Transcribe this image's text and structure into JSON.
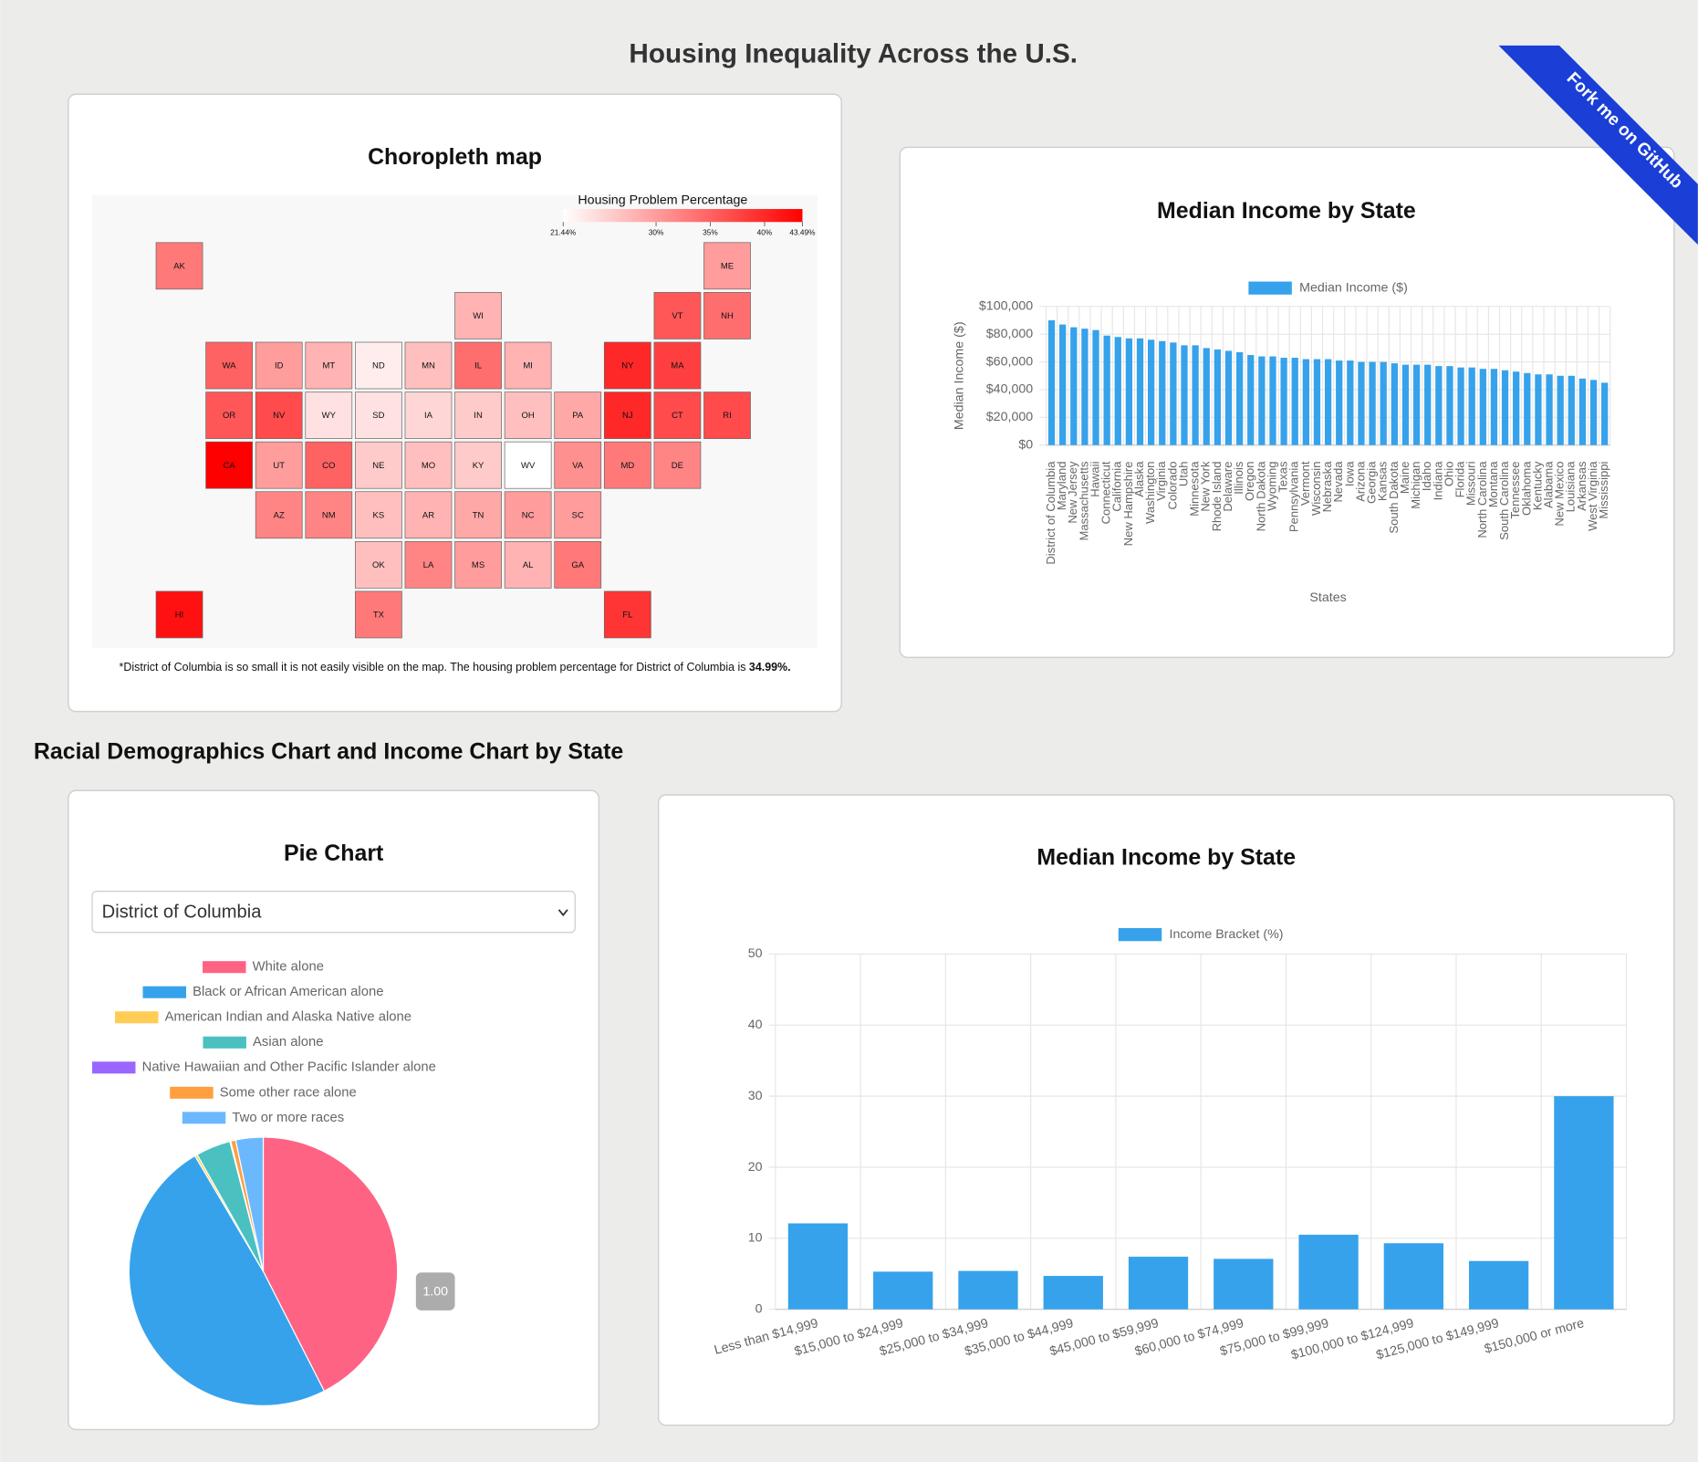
{
  "title": "Housing Inequality Across the U.S.",
  "ribbon": "Fork me on GitHub",
  "section_title": "Racial Demographics Chart and Income Chart by State",
  "chart_data": [
    {
      "type": "choropleth",
      "title": "Choropleth map",
      "legend_title": "Housing Problem Percentage",
      "legend_ticks": [
        {
          "value": 21.44,
          "label": "21.44%"
        },
        {
          "value": 30,
          "label": "30%"
        },
        {
          "value": 35,
          "label": "35%"
        },
        {
          "value": 40,
          "label": "40%"
        },
        {
          "value": 43.49,
          "label": "43.49%"
        }
      ],
      "color_scale": [
        "#ffffff",
        "#ff0000"
      ],
      "states": [
        "AK",
        "ME",
        "WI",
        "VT",
        "NH",
        "WA",
        "ID",
        "MT",
        "ND",
        "MN",
        "IL",
        "MI",
        "NY",
        "MA",
        "OR",
        "NV",
        "WY",
        "SD",
        "IA",
        "IN",
        "OH",
        "PA",
        "NJ",
        "CT",
        "RI",
        "CA",
        "UT",
        "CO",
        "NE",
        "MO",
        "KY",
        "WV",
        "VA",
        "MD",
        "DE",
        "AZ",
        "NM",
        "KS",
        "AR",
        "TN",
        "NC",
        "SC",
        "OK",
        "LA",
        "MS",
        "AL",
        "GA",
        "HI",
        "TX",
        "FL"
      ],
      "values": [
        33,
        30,
        28,
        36,
        34,
        35,
        30,
        28,
        23,
        27,
        34,
        28,
        40,
        38,
        36,
        37,
        24,
        24,
        25,
        26,
        27,
        29,
        40,
        37,
        37,
        43.49,
        30,
        35,
        26,
        27,
        26,
        21.44,
        31,
        33,
        32,
        32,
        32,
        27,
        28,
        29,
        30,
        30,
        27,
        32,
        30,
        28,
        33,
        42,
        33,
        39
      ],
      "note": "*District of Columbia is so small it is not easily visible on the map. The housing problem percentage for District of Columbia is ",
      "note_value": {
        "value": 34.99,
        "label": "34.99%."
      }
    },
    {
      "type": "bar",
      "title": "Median Income by State",
      "xlabel": "States",
      "ylabel": "Median Income ($)",
      "categories": [
        "District of Columbia",
        "Maryland",
        "New Jersey",
        "Massachusetts",
        "Hawaii",
        "Connecticut",
        "California",
        "New Hampshire",
        "Alaska",
        "Washington",
        "Virginia",
        "Colorado",
        "Utah",
        "Minnesota",
        "New York",
        "Rhode Island",
        "Delaware",
        "Illinois",
        "Oregon",
        "North Dakota",
        "Wyoming",
        "Texas",
        "Pennsylvania",
        "Vermont",
        "Wisconsin",
        "Nebraska",
        "Nevada",
        "Iowa",
        "Arizona",
        "Georgia",
        "Kansas",
        "South Dakota",
        "Maine",
        "Michigan",
        "Idaho",
        "Indiana",
        "Ohio",
        "Florida",
        "Missouri",
        "North Carolina",
        "Montana",
        "South Carolina",
        "Tennessee",
        "Oklahoma",
        "Kentucky",
        "Alabama",
        "New Mexico",
        "Louisiana",
        "Arkansas",
        "West Virginia",
        "Mississippi"
      ],
      "series": [
        {
          "name": "Median Income ($)",
          "color": "#36a2eb",
          "values": [
            90000,
            87000,
            85000,
            84000,
            83000,
            79000,
            78000,
            77000,
            77000,
            76000,
            75000,
            74000,
            72000,
            72000,
            70000,
            69000,
            68000,
            67000,
            65000,
            64000,
            64000,
            63000,
            63000,
            62000,
            62000,
            62000,
            61000,
            61000,
            60000,
            60000,
            60000,
            59000,
            58000,
            58000,
            58000,
            57000,
            57000,
            56000,
            56000,
            55000,
            55000,
            54000,
            53000,
            52000,
            51000,
            51000,
            50000,
            50000,
            48000,
            47000,
            45000
          ]
        }
      ],
      "ylim": [
        0,
        100000
      ],
      "yticks": [
        {
          "value": 0,
          "label": "$0"
        },
        {
          "value": 20000,
          "label": "$20,000"
        },
        {
          "value": 40000,
          "label": "$40,000"
        },
        {
          "value": 60000,
          "label": "$60,000"
        },
        {
          "value": 80000,
          "label": "$80,000"
        },
        {
          "value": 100000,
          "label": "$100,000"
        }
      ],
      "grid": true
    },
    {
      "type": "pie",
      "title": "Pie Chart",
      "selected_state": "District of Columbia",
      "categories": [
        "White alone",
        "Black or African American alone",
        "American Indian and Alaska Native alone",
        "Asian alone",
        "Native Hawaiian and Other Pacific Islander alone",
        "Some other race alone",
        "Two or more races"
      ],
      "values": [
        42.5,
        49.0,
        0.3,
        4.2,
        0.1,
        0.6,
        3.3
      ],
      "colors": [
        "#ff6384",
        "#36a2eb",
        "#ffcd56",
        "#4bc0c0",
        "#9966ff",
        "#ff9f40",
        "#6cb8ff"
      ],
      "tooltip": "1.00"
    },
    {
      "type": "bar",
      "title": "Median Income by State",
      "categories": [
        "Less than $14,999",
        "$15,000 to $24,999",
        "$25,000 to $34,999",
        "$35,000 to $44,999",
        "$45,000 to $59,999",
        "$60,000 to $74,999",
        "$75,000 to $99,999",
        "$100,000 to $124,999",
        "$125,000 to $149,999",
        "$150,000 or more"
      ],
      "series": [
        {
          "name": "Income Bracket (%)",
          "color": "#36a2eb",
          "values": [
            12.1,
            5.3,
            5.4,
            4.7,
            7.4,
            7.1,
            10.5,
            9.3,
            6.8,
            30.0
          ]
        }
      ],
      "ylim": [
        0,
        50
      ],
      "yticks": [
        0,
        10,
        20,
        30,
        40,
        50
      ],
      "grid": true
    }
  ]
}
